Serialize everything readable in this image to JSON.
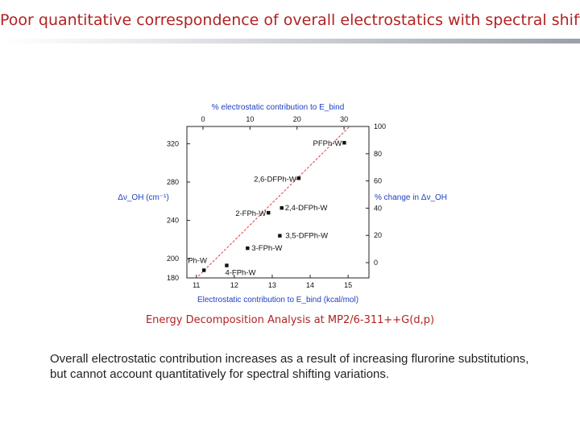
{
  "slide": {
    "title": "Poor quantitative correspondence of overall electrostatics with spectral shifting",
    "caption": "Energy Decomposition Analysis at MP2/6-311++G(d,p)",
    "summary": "Overall electrostatic contribution increases as a result of increasing flurorine substitutions,  but  cannot account quantitatively  for spectral shifting variations."
  },
  "colors": {
    "title": "#b22222",
    "caption": "#b22222",
    "axis_label": "#1f3fbf",
    "fit_line": "#d04040",
    "points": "#111111"
  },
  "chart_data": {
    "type": "scatter",
    "xlabel": "Electrostatic contribution to E_bind (kcal/mol)",
    "xlim": [
      10.75,
      15.55
    ],
    "xticks": [
      11,
      12,
      13,
      14,
      15
    ],
    "ylabel": "Δν_OH (cm⁻¹)",
    "ylim": [
      180,
      338
    ],
    "yticks": [
      180,
      200,
      240,
      280,
      320
    ],
    "top_axis": {
      "label": "% electrostatic contribution to E_bind",
      "ticks": [
        0,
        10,
        20,
        30
      ]
    },
    "right_axis": {
      "label": "% change in Δν_OH",
      "ticks": [
        0,
        20,
        40,
        60,
        80,
        100
      ]
    },
    "points": [
      {
        "label": "Ph-W",
        "x": 11.2,
        "y": 188
      },
      {
        "label": "4-FPh-W",
        "x": 11.8,
        "y": 193
      },
      {
        "label": "3-FPh-W",
        "x": 12.35,
        "y": 211
      },
      {
        "label": "3,5-DFPh-W",
        "x": 13.2,
        "y": 224
      },
      {
        "label": "2-FPh-W",
        "x": 12.9,
        "y": 248
      },
      {
        "label": "2,4-DFPh-W",
        "x": 13.25,
        "y": 253
      },
      {
        "label": "2,6-DFPh-W",
        "x": 13.7,
        "y": 284
      },
      {
        "label": "PFPh-W",
        "x": 14.9,
        "y": 321
      }
    ],
    "fit_line": [
      {
        "x": 10.75,
        "y": 170
      },
      {
        "x": 15.55,
        "y": 358
      }
    ]
  }
}
